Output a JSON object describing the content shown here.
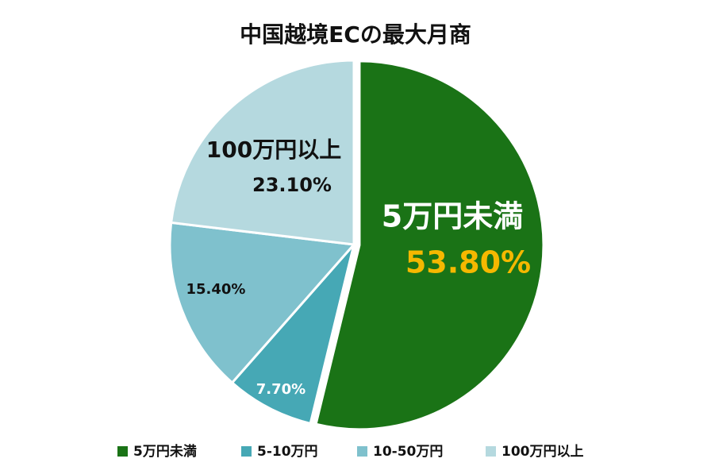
{
  "chart_data": {
    "type": "pie",
    "title": "中国越境ECの最大月商",
    "categories": [
      "5万円未満",
      "5-10万円",
      "10-50万円",
      "100万円以上"
    ],
    "values": [
      53.8,
      7.7,
      15.4,
      23.1
    ],
    "value_labels": [
      "53.80%",
      "7.70%",
      "15.40%",
      "23.10%"
    ],
    "colors": [
      "#1a7316",
      "#46a8b5",
      "#7fc1cd",
      "#b5d9df"
    ],
    "legend": "bottom"
  }
}
